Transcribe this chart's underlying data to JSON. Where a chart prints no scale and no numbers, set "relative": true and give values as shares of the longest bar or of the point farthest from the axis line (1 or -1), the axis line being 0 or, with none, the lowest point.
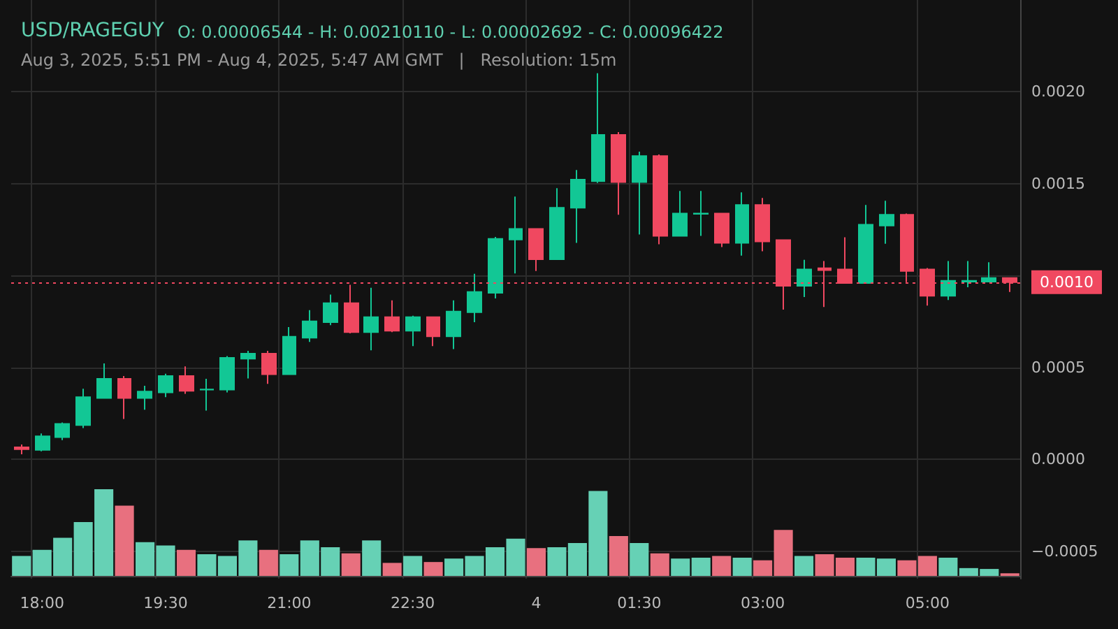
{
  "chart_data": [
    {
      "type": "candlestick",
      "title": "USD/RAGEGUY",
      "subtitle": "Aug 3, 2025, 5:51 PM - Aug 4, 2025, 5:47 AM GMT   |   Resolution: 15m",
      "annotations": [
        "O: 0.00006544 - H: 0.00210110 - L: 0.00002692 - C: 0.00096422"
      ],
      "categories": [
        null,
        "18:00",
        null,
        null,
        null,
        null,
        null,
        "19:30",
        null,
        null,
        null,
        null,
        null,
        "21:00",
        null,
        null,
        null,
        null,
        null,
        "22:30",
        null,
        null,
        null,
        null,
        null,
        "4",
        null,
        null,
        null,
        null,
        "01:30",
        null,
        null,
        null,
        null,
        null,
        "03:00",
        null,
        null,
        null,
        null,
        null,
        null,
        null,
        "05:00",
        null,
        null,
        null,
        null
      ],
      "ohlc": [
        [
          6.5e-05,
          8e-05,
          2.7e-05,
          5.5e-05
        ],
        [
          5.1e-05,
          0.00014,
          4.3e-05,
          0.000125
        ],
        [
          0.00012,
          0.0002,
          0.000104,
          0.000193
        ],
        [
          0.000186,
          0.000384,
          0.00017,
          0.000338
        ],
        [
          0.000333,
          0.000522,
          0.000333,
          0.000438
        ],
        [
          0.000438,
          0.000453,
          0.000219,
          0.000333
        ],
        [
          0.000333,
          0.0004,
          0.00027,
          0.000369
        ],
        [
          0.000364,
          0.000466,
          0.000338,
          0.000453
        ],
        [
          0.000453,
          0.000506,
          0.000356,
          0.000372
        ],
        [
          0.000379,
          0.000438,
          0.000265,
          0.00038
        ],
        [
          0.000379,
          0.000562,
          0.000364,
          0.000552
        ],
        [
          0.000547,
          0.00059,
          0.00044,
          0.000575
        ],
        [
          0.000575,
          0.00059,
          0.00041,
          0.000463
        ],
        [
          0.000463,
          0.00072,
          0.000463,
          0.000667
        ],
        [
          0.000662,
          0.000812,
          0.000639,
          0.000751
        ],
        [
          0.000746,
          0.000896,
          0.00073,
          0.00085
        ],
        [
          0.00085,
          0.00095,
          0.000685,
          0.000692
        ],
        [
          0.000692,
          0.000934,
          0.000593,
          0.000774
        ],
        [
          0.000774,
          0.000865,
          0.000692,
          0.0007
        ],
        [
          0.0007,
          0.000781,
          0.000616,
          0.000774
        ],
        [
          0.000774,
          0.000774,
          0.000616,
          0.000669
        ],
        [
          0.000669,
          0.000865,
          0.0006,
          0.000804
        ],
        [
          0.0008,
          0.00101,
          0.000746,
          0.000911
        ],
        [
          0.000906,
          0.00121,
          0.000876,
          0.0012
        ],
        [
          0.001196,
          0.00143,
          0.001012,
          0.001254
        ],
        [
          0.001254,
          0.001254,
          0.001025,
          0.001089
        ],
        [
          0.001089,
          0.001476,
          0.001089,
          0.001369
        ],
        [
          0.001369,
          0.001575,
          0.001178,
          0.001522
        ],
        [
          0.001514,
          0.0021011,
          0.001504,
          0.001766
        ],
        [
          0.001766,
          0.001781,
          0.001331,
          0.001509
        ],
        [
          0.001509,
          0.001674,
          0.001224,
          0.001651
        ],
        [
          0.001651,
          0.001659,
          0.00117,
          0.001216
        ],
        [
          0.001216,
          0.00146,
          0.001216,
          0.001338
        ],
        [
          0.001336,
          0.00146,
          0.001216,
          0.001338
        ],
        [
          0.001338,
          0.001338,
          0.001155,
          0.001178
        ],
        [
          0.001178,
          0.001453,
          0.001109,
          0.001384
        ],
        [
          0.001384,
          0.001422,
          0.001132,
          0.001186
        ],
        [
          0.001193,
          0.001193,
          0.000815,
          0.000944
        ],
        [
          0.000944,
          0.001086,
          0.000883,
          0.001033
        ],
        [
          0.00104,
          0.001079,
          0.000829,
          0.00103
        ],
        [
          0.001033,
          0.001208,
          0.000959,
          0.000959
        ],
        [
          0.000959,
          0.001384,
          0.000959,
          0.001277
        ],
        [
          0.001272,
          0.001407,
          0.001173,
          0.001331
        ],
        [
          0.001331,
          0.001338,
          0.000964,
          0.001025
        ],
        [
          0.001033,
          0.001041,
          0.000837,
          0.00089
        ],
        [
          0.00089,
          0.001079,
          0.000867,
          0.000972
        ],
        [
          0.000967,
          0.001079,
          0.000936,
          0.000972
        ],
        [
          0.000967,
          0.001072,
          0.000967,
          0.000987
        ],
        [
          0.000987,
          0.000987,
          0.000911,
          0.000964
        ]
      ],
      "colors": [
        "#f04860",
        "#12c795",
        "#12c795",
        "#12c795",
        "#12c795",
        "#f04860",
        "#12c795",
        "#12c795",
        "#f04860",
        "#12c795",
        "#12c795",
        "#12c795",
        "#f04860",
        "#12c795",
        "#12c795",
        "#12c795",
        "#f04860",
        "#12c795",
        "#f04860",
        "#12c795",
        "#f04860",
        "#12c795",
        "#12c795",
        "#12c795",
        "#12c795",
        "#f04860",
        "#12c795",
        "#12c795",
        "#12c795",
        "#f04860",
        "#12c795",
        "#f04860",
        "#12c795",
        "#12c795",
        "#f04860",
        "#12c795",
        "#f04860",
        "#f04860",
        "#12c795",
        "#f04860",
        "#f04860",
        "#12c795",
        "#12c795",
        "#f04860",
        "#f04860",
        "#12c795",
        "#12c795",
        "#12c795",
        "#f04860"
      ],
      "ylim": [
        -0.00065,
        0.0025
      ],
      "yticks": [
        {
          "value": -0.0005,
          "label": "−0.0005"
        },
        {
          "value": 0,
          "label": "0.0000"
        },
        {
          "value": 0.0005,
          "label": "0.0005"
        },
        {
          "value": 0.001,
          "label": null
        },
        {
          "value": 0.0015,
          "label": "0.0015"
        },
        {
          "value": 0.002,
          "label": "0.0020"
        }
      ],
      "ref_lines": [
        {
          "axis": "y",
          "value": 0.00096422,
          "label": "0.0010",
          "color": "#f04860",
          "line_style": "dotted"
        }
      ],
      "grid": true
    },
    {
      "type": "bar",
      "relative": true,
      "categories": [
        null,
        null,
        null,
        null,
        null,
        null,
        null,
        null,
        null,
        null,
        null,
        null,
        null,
        null,
        null,
        null,
        null,
        null,
        null,
        null,
        null,
        null,
        null,
        null,
        null,
        null,
        null,
        null,
        null,
        null,
        null,
        null,
        null,
        null,
        null,
        null,
        null,
        null,
        null,
        null,
        null,
        null,
        null,
        null,
        null,
        null,
        null,
        null,
        null
      ],
      "values": [
        0.23,
        0.3,
        0.44,
        0.62,
        1,
        0.81,
        0.39,
        0.35,
        0.3,
        0.25,
        0.23,
        0.41,
        0.3,
        0.25,
        0.41,
        0.33,
        0.26,
        0.41,
        0.15,
        0.23,
        0.16,
        0.2,
        0.23,
        0.33,
        0.43,
        0.32,
        0.33,
        0.38,
        0.98,
        0.46,
        0.38,
        0.26,
        0.2,
        0.21,
        0.23,
        0.21,
        0.18,
        0.53,
        0.23,
        0.25,
        0.21,
        0.21,
        0.2,
        0.18,
        0.23,
        0.21,
        0.09,
        0.08,
        0.03
      ],
      "colors": [
        "#66d1b5",
        "#66d1b5",
        "#66d1b5",
        "#66d1b5",
        "#66d1b5",
        "#e8707f",
        "#66d1b5",
        "#66d1b5",
        "#e8707f",
        "#66d1b5",
        "#66d1b5",
        "#66d1b5",
        "#e8707f",
        "#66d1b5",
        "#66d1b5",
        "#66d1b5",
        "#e8707f",
        "#66d1b5",
        "#e8707f",
        "#66d1b5",
        "#e8707f",
        "#66d1b5",
        "#66d1b5",
        "#66d1b5",
        "#66d1b5",
        "#e8707f",
        "#66d1b5",
        "#66d1b5",
        "#66d1b5",
        "#e8707f",
        "#66d1b5",
        "#e8707f",
        "#66d1b5",
        "#66d1b5",
        "#e8707f",
        "#66d1b5",
        "#e8707f",
        "#e8707f",
        "#66d1b5",
        "#e8707f",
        "#e8707f",
        "#66d1b5",
        "#66d1b5",
        "#e8707f",
        "#e8707f",
        "#66d1b5",
        "#66d1b5",
        "#66d1b5",
        "#e8707f"
      ]
    }
  ]
}
